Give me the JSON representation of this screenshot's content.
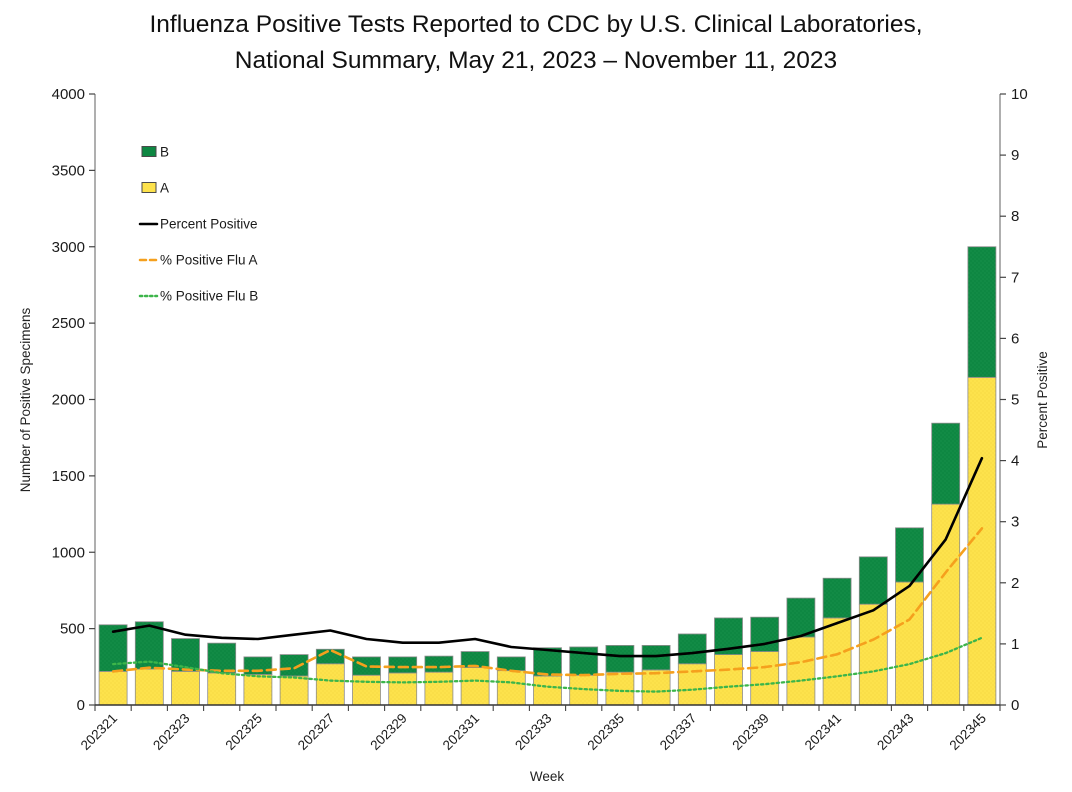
{
  "title": {
    "line1": "Influenza Positive Tests Reported to CDC by U.S. Clinical Laboratories,",
    "line2": "National Summary, May 21, 2023 – November 11, 2023"
  },
  "colors": {
    "flu_b_green": "#0e8742",
    "flu_b_speck": "#1f9b52",
    "flu_a_yellow": "#fde24c",
    "flu_a_speck": "#f0cd38",
    "percent_positive": "#000000",
    "percent_flu_a": "#f5a01d",
    "percent_flu_b": "#3cb54a",
    "bar_outline": "#8c8c8c",
    "axis_line": "#7a7a7a",
    "baseline": "#333333",
    "tick": "#444444"
  },
  "legend": [
    {
      "label": "B",
      "marker": "box",
      "color_key": "flu_b_green"
    },
    {
      "label": "A",
      "marker": "box",
      "color_key": "flu_a_yellow"
    },
    {
      "label": "Percent Positive",
      "marker": "solid-line",
      "color_key": "percent_positive"
    },
    {
      "label": "% Positive Flu A",
      "marker": "dashed-line",
      "color_key": "percent_flu_a"
    },
    {
      "label": "% Positive Flu B",
      "marker": "dotted-line",
      "color_key": "percent_flu_b"
    }
  ],
  "chart_data": {
    "type": "bar",
    "subtype": "stacked-bars-with-line-overlay",
    "title": "Influenza Positive Tests Reported to CDC by U.S. Clinical Laboratories, National Summary, May 21, 2023 – November 11, 2023",
    "xlabel": "Week",
    "ylabel_left": "Number of Positive Specimens",
    "ylabel_right": "Percent Positive",
    "grid": false,
    "legend_position": "upper-left-inside",
    "left_axis": {
      "min": 0,
      "max": 4000,
      "step": 500
    },
    "right_axis": {
      "min": 0,
      "max": 10,
      "step": 1
    },
    "categories": [
      "202321",
      "202322",
      "202323",
      "202324",
      "202325",
      "202326",
      "202327",
      "202328",
      "202329",
      "202330",
      "202331",
      "202332",
      "202333",
      "202334",
      "202335",
      "202336",
      "202337",
      "202338",
      "202339",
      "202340",
      "202341",
      "202342",
      "202343",
      "202344",
      "202345"
    ],
    "x_tick_labels_shown": [
      "202321",
      "202323",
      "202325",
      "202327",
      "202329",
      "202331",
      "202333",
      "202335",
      "202337",
      "202339",
      "202341",
      "202343",
      "202345"
    ],
    "series": [
      {
        "name": "A",
        "type": "bar-stack",
        "axis": "left",
        "color_key": "flu_a_yellow",
        "values": [
          220,
          235,
          220,
          210,
          200,
          190,
          270,
          195,
          210,
          215,
          245,
          225,
          190,
          195,
          215,
          230,
          270,
          330,
          350,
          445,
          570,
          660,
          805,
          1315,
          2145
        ]
      },
      {
        "name": "B",
        "type": "bar-stack",
        "axis": "left",
        "color_key": "flu_b_green",
        "values": [
          305,
          310,
          215,
          195,
          115,
          140,
          95,
          120,
          105,
          105,
          105,
          90,
          185,
          185,
          175,
          160,
          195,
          240,
          225,
          255,
          260,
          310,
          355,
          530,
          855
        ]
      },
      {
        "name": "Percent Positive",
        "type": "line",
        "axis": "right",
        "color_key": "percent_positive",
        "values": [
          1.2,
          1.3,
          1.15,
          1.1,
          1.08,
          1.15,
          1.22,
          1.08,
          1.02,
          1.02,
          1.08,
          0.95,
          0.9,
          0.85,
          0.8,
          0.8,
          0.85,
          0.92,
          1.0,
          1.13,
          1.34,
          1.55,
          1.95,
          2.71,
          4.04
        ]
      },
      {
        "name": "% Positive Flu A",
        "type": "line-dashed",
        "axis": "right",
        "color_key": "percent_flu_a",
        "values": [
          0.55,
          0.61,
          0.58,
          0.56,
          0.56,
          0.6,
          0.9,
          0.63,
          0.62,
          0.62,
          0.64,
          0.56,
          0.5,
          0.49,
          0.51,
          0.52,
          0.55,
          0.58,
          0.62,
          0.7,
          0.83,
          1.07,
          1.4,
          2.17,
          2.89
        ]
      },
      {
        "name": "% Positive Flu B",
        "type": "line-dotted",
        "axis": "right",
        "color_key": "percent_flu_b",
        "values": [
          0.67,
          0.71,
          0.62,
          0.52,
          0.47,
          0.45,
          0.4,
          0.38,
          0.37,
          0.38,
          0.4,
          0.37,
          0.3,
          0.26,
          0.23,
          0.22,
          0.25,
          0.3,
          0.34,
          0.4,
          0.47,
          0.55,
          0.67,
          0.85,
          1.1
        ]
      }
    ]
  }
}
